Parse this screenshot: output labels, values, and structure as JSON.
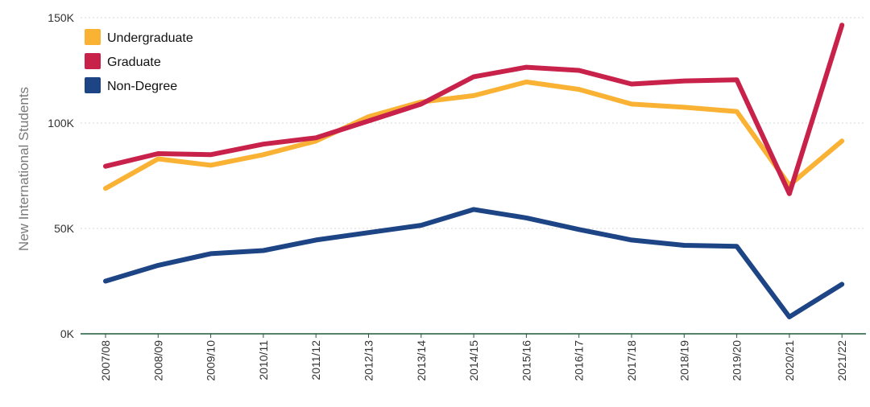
{
  "chart_data": {
    "type": "line",
    "title": "",
    "xlabel": "",
    "ylabel": "New International Students",
    "categories": [
      "2007/08",
      "2008/09",
      "2009/10",
      "2010/11",
      "2011/12",
      "2012/13",
      "2013/14",
      "2014/15",
      "2015/16",
      "2016/17",
      "2017/18",
      "2018/19",
      "2019/20",
      "2020/21",
      "2021/22"
    ],
    "ylim": [
      0,
      150000
    ],
    "yticks": [
      {
        "value": 0,
        "label": "0K"
      },
      {
        "value": 50000,
        "label": "50K"
      },
      {
        "value": 100000,
        "label": "100K"
      },
      {
        "value": 150000,
        "label": "150K"
      }
    ],
    "grid": true,
    "legend_position": "top-left",
    "series": [
      {
        "name": "Undergraduate",
        "color": "#f9b233",
        "values": [
          69000,
          83000,
          80000,
          85000,
          91500,
          103000,
          110000,
          113000,
          119500,
          116000,
          109000,
          107500,
          105500,
          70500,
          91500
        ]
      },
      {
        "name": "Graduate",
        "color": "#c8214a",
        "values": [
          79500,
          85500,
          85000,
          90000,
          93000,
          101000,
          109000,
          122000,
          126500,
          125000,
          118500,
          120000,
          120500,
          66500,
          146500
        ]
      },
      {
        "name": "Non-Degree",
        "color": "#1d4485",
        "values": [
          25000,
          32500,
          38000,
          39500,
          44500,
          48000,
          51500,
          59000,
          55000,
          49500,
          44500,
          42000,
          41500,
          8000,
          23500
        ]
      }
    ]
  }
}
